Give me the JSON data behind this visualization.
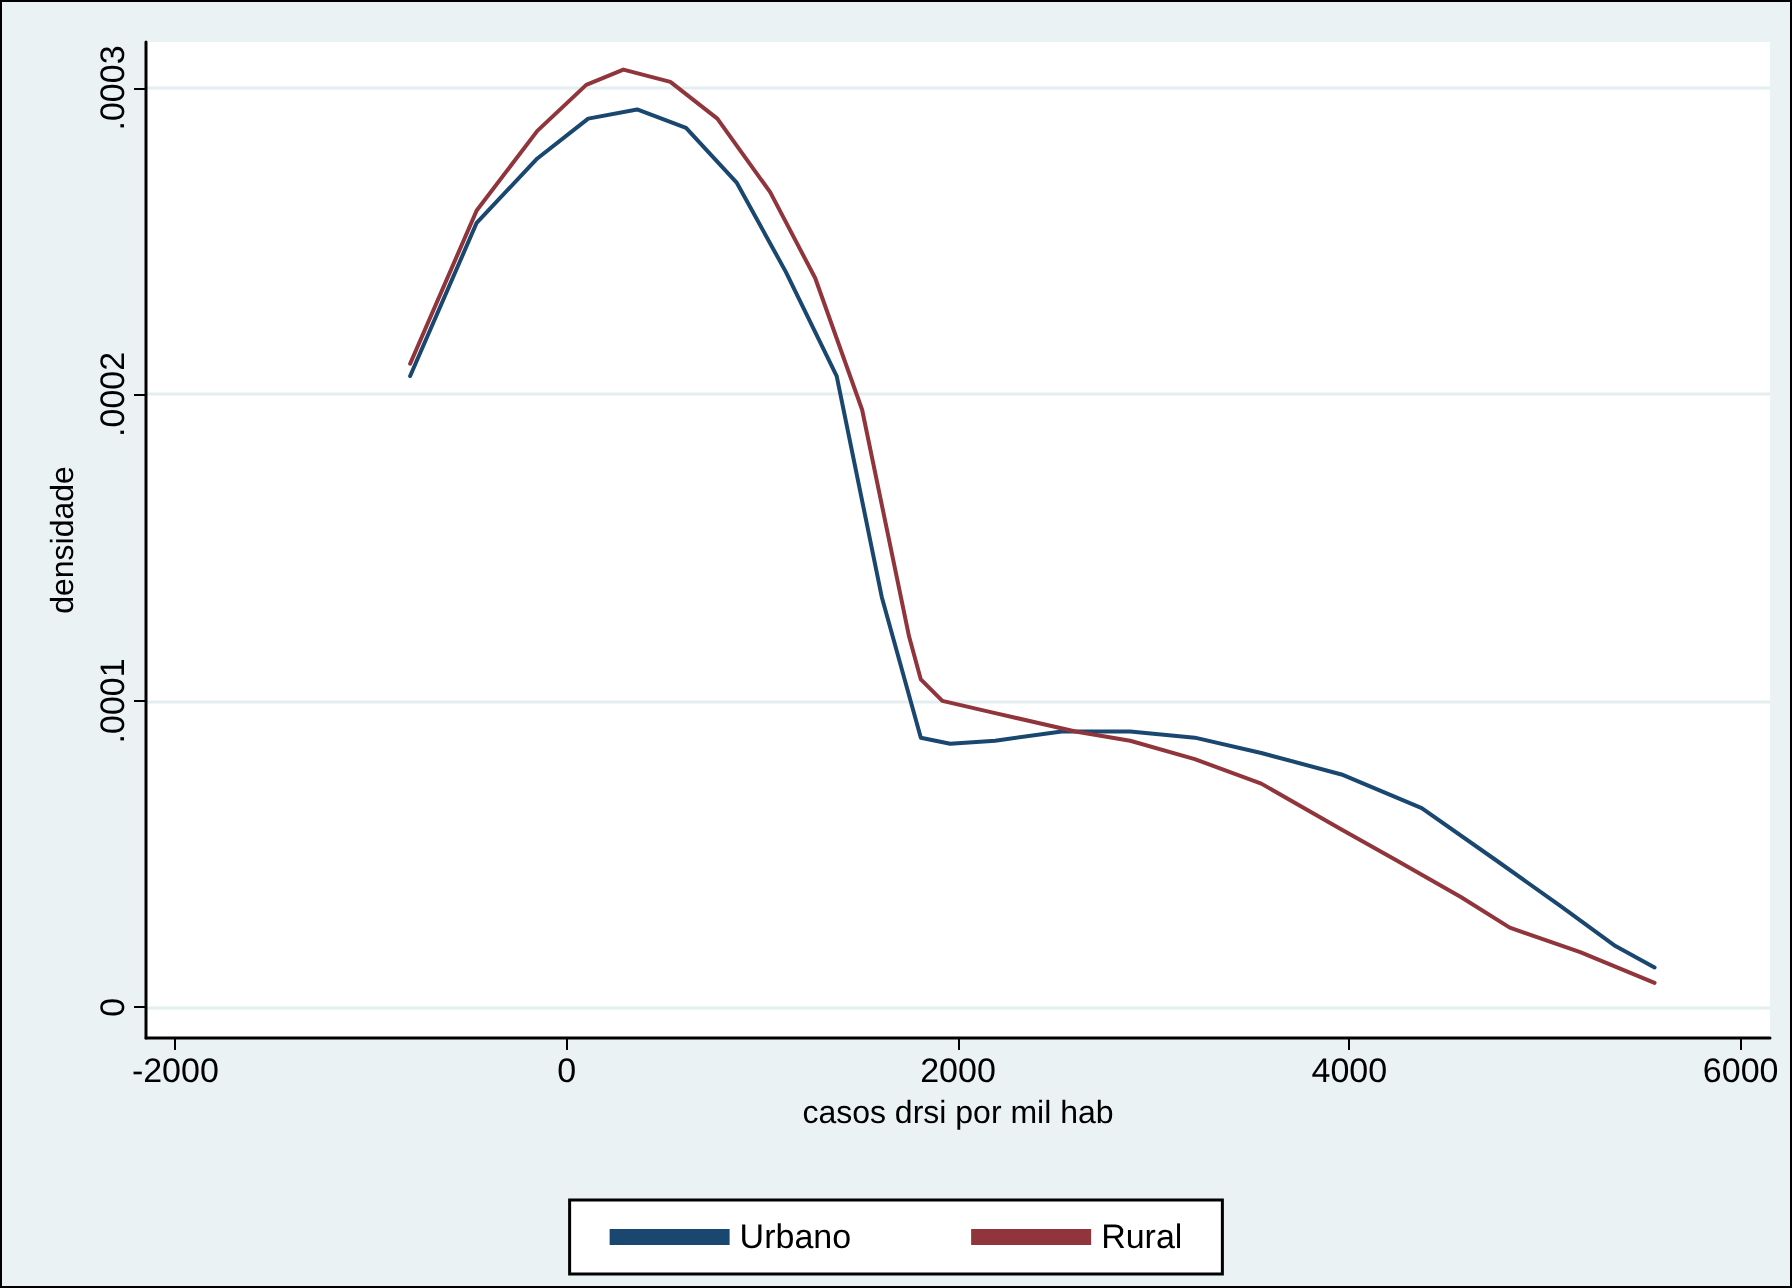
{
  "chart_data": {
    "type": "line",
    "xlabel": "casos drsi por mil hab",
    "ylabel": "densidade",
    "xlim": [
      -2150,
      6150
    ],
    "xticks": [
      -2000,
      0,
      2000,
      4000,
      6000
    ],
    "ylim": [
      -1e-05,
      0.000315
    ],
    "yticks": [
      0,
      {
        "value": 0.0001,
        "label": ".0001"
      },
      {
        "value": 0.0002,
        "label": ".0002"
      },
      {
        "value": 0.0003,
        "label": ".0003"
      }
    ],
    "grid": "y",
    "legend": "bottom",
    "marker": "none",
    "line_style": "solid",
    "series": [
      {
        "name": "Urbano",
        "color": "#1a476f",
        "x": [
          -800,
          -460,
          -150,
          110,
          360,
          610,
          870,
          1120,
          1380,
          1610,
          1810,
          1960,
          2190,
          2530,
          2880,
          3210,
          3550,
          3960,
          4370,
          4750,
          5080,
          5360,
          5560
        ],
        "values": [
          0.000206,
          0.000256,
          0.000277,
          0.00029,
          0.000293,
          0.000287,
          0.000269,
          0.00024,
          0.000206,
          0.000134,
          8.8e-05,
          8.6e-05,
          8.7e-05,
          9e-05,
          9e-05,
          8.8e-05,
          8.3e-05,
          7.6e-05,
          6.5e-05,
          4.8e-05,
          3.3e-05,
          2e-05,
          1.3e-05
        ]
      },
      {
        "name": "Rural",
        "color": "#90353b",
        "x": [
          -800,
          -460,
          -150,
          100,
          290,
          530,
          770,
          1040,
          1270,
          1510,
          1750,
          1810,
          1920,
          2190,
          2600,
          2880,
          3210,
          3550,
          3960,
          4240,
          4570,
          4820,
          5180,
          5560
        ],
        "values": [
          0.00021,
          0.00026,
          0.000286,
          0.000301,
          0.000306,
          0.000302,
          0.00029,
          0.000266,
          0.000238,
          0.000195,
          0.000121,
          0.000107,
          0.0001,
          9.6e-05,
          9e-05,
          8.7e-05,
          8.1e-05,
          7.3e-05,
          5.8e-05,
          4.8e-05,
          3.6e-05,
          2.6e-05,
          1.8e-05,
          8e-06
        ]
      }
    ]
  }
}
